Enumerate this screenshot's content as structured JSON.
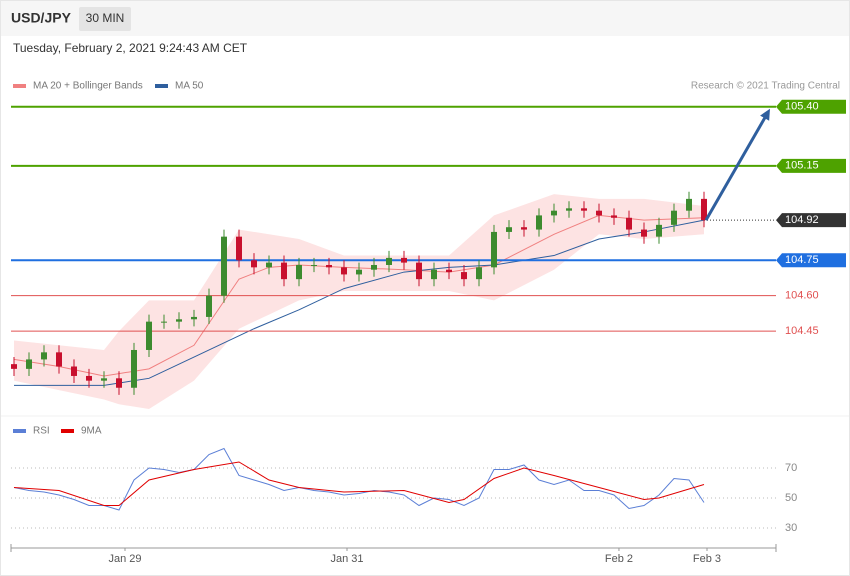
{
  "header": {
    "symbol": "USD/JPY",
    "interval": "30 MIN",
    "timestamp": "Tuesday, February 2, 2021 9:24:43 AM CET"
  },
  "chart_data": [
    {
      "type": "candlestick",
      "credit": "Research © 2021 Trading Central",
      "up_color": "#3d8b2f",
      "down_color": "#c8102e",
      "open": [
        104.31,
        104.29,
        104.33,
        104.36,
        104.3,
        104.26,
        104.24,
        104.25,
        104.21,
        104.37,
        104.49,
        104.49,
        104.5,
        104.51,
        104.6,
        104.85,
        104.75,
        104.72,
        104.74,
        104.67,
        104.73,
        104.73,
        104.72,
        104.69,
        104.71,
        104.73,
        104.76,
        104.74,
        104.67,
        104.71,
        104.7,
        104.67,
        104.72,
        104.87,
        104.89,
        104.88,
        104.94,
        104.96,
        104.97,
        104.96,
        104.94,
        104.93,
        104.88,
        104.85,
        104.9,
        104.96,
        105.01
      ],
      "high": [
        104.34,
        104.36,
        104.39,
        104.39,
        104.33,
        104.29,
        104.28,
        104.28,
        104.4,
        104.52,
        104.52,
        104.53,
        104.54,
        104.63,
        104.88,
        104.88,
        104.78,
        104.77,
        104.77,
        104.76,
        104.76,
        104.76,
        104.75,
        104.74,
        104.76,
        104.79,
        104.79,
        104.77,
        104.74,
        104.74,
        104.73,
        104.75,
        104.9,
        104.92,
        104.92,
        104.97,
        104.99,
        105.0,
        105.0,
        104.99,
        104.97,
        104.96,
        104.91,
        104.93,
        104.99,
        105.04,
        105.04
      ],
      "low": [
        104.26,
        104.26,
        104.3,
        104.27,
        104.23,
        104.21,
        104.21,
        104.18,
        104.18,
        104.34,
        104.46,
        104.46,
        104.47,
        104.48,
        104.57,
        104.72,
        104.69,
        104.69,
        104.64,
        104.64,
        104.7,
        104.69,
        104.66,
        104.66,
        104.68,
        104.7,
        104.71,
        104.64,
        104.64,
        104.67,
        104.64,
        104.64,
        104.69,
        104.84,
        104.85,
        104.85,
        104.91,
        104.93,
        104.93,
        104.91,
        104.9,
        104.85,
        104.82,
        104.82,
        104.87,
        104.93,
        104.89
      ],
      "close": [
        104.29,
        104.33,
        104.36,
        104.3,
        104.26,
        104.24,
        104.25,
        104.21,
        104.37,
        104.49,
        104.49,
        104.5,
        104.51,
        104.6,
        104.85,
        104.75,
        104.72,
        104.74,
        104.67,
        104.73,
        104.73,
        104.72,
        104.69,
        104.71,
        104.73,
        104.76,
        104.74,
        104.67,
        104.71,
        104.7,
        104.67,
        104.72,
        104.87,
        104.89,
        104.88,
        104.94,
        104.96,
        104.97,
        104.96,
        104.94,
        104.93,
        104.88,
        104.85,
        104.9,
        104.96,
        105.01,
        104.92
      ],
      "overlays": [
        {
          "name": "MA 20 + Bollinger Bands",
          "color": "#f08080",
          "band_color": "#fde3e3",
          "x": [
            0,
            3,
            6,
            7,
            9,
            12,
            15,
            17,
            19,
            22,
            26,
            29,
            32,
            36,
            39,
            42,
            46
          ],
          "values": [
            104.33,
            104.3,
            104.26,
            104.27,
            104.29,
            104.39,
            104.67,
            104.72,
            104.73,
            104.72,
            104.71,
            104.7,
            104.73,
            104.86,
            104.94,
            104.92,
            104.93
          ],
          "upper": [
            104.41,
            104.39,
            104.37,
            104.45,
            104.58,
            104.58,
            104.88,
            104.86,
            104.84,
            104.77,
            104.77,
            104.77,
            104.94,
            105.03,
            105.01,
            105.01,
            104.98
          ],
          "lower": [
            104.24,
            104.2,
            104.16,
            104.14,
            104.12,
            104.24,
            104.46,
            104.52,
            104.58,
            104.62,
            104.62,
            104.62,
            104.58,
            104.71,
            104.86,
            104.84,
            104.86
          ]
        },
        {
          "name": "MA 50",
          "color": "#2f5f9e",
          "x": [
            0,
            6,
            9,
            12,
            16,
            19,
            22,
            26,
            29,
            32,
            36,
            39,
            42,
            46
          ],
          "values": [
            104.22,
            104.22,
            104.25,
            104.34,
            104.46,
            104.54,
            104.63,
            104.7,
            104.72,
            104.73,
            104.77,
            104.84,
            104.87,
            104.92
          ]
        }
      ],
      "levels": [
        {
          "value": 105.4,
          "label": "105.40",
          "color": "#4ea200",
          "boxed": true
        },
        {
          "value": 105.15,
          "color": "#4ea200",
          "boxed": true
        },
        {
          "value": 104.92,
          "color": "#333333",
          "boxed": true,
          "style": "dotted"
        },
        {
          "value": 104.75,
          "color": "#1f6fe0",
          "boxed": true
        },
        {
          "value": 104.6,
          "label": "104.60",
          "color": "#e05050",
          "boxed": false
        },
        {
          "value": 104.45,
          "color": "#e05050",
          "boxed": false
        }
      ],
      "ylim": [
        104.12,
        105.45
      ],
      "xlim": [
        -0.2,
        50.8
      ]
    },
    {
      "type": "line",
      "series": [
        {
          "name": "RSI",
          "color": "#5b7fd6",
          "x": [
            0,
            1,
            2,
            3,
            4,
            5,
            6,
            7,
            8,
            9,
            10,
            11,
            12,
            13,
            14,
            15,
            16,
            17,
            18,
            19,
            20,
            21,
            22,
            23,
            24,
            25,
            26,
            27,
            28,
            29,
            30,
            31,
            32,
            33,
            34,
            35,
            36,
            37,
            38,
            39,
            40,
            41,
            42,
            43,
            44,
            45,
            46
          ],
          "values": [
            57,
            55,
            54,
            52,
            49,
            45,
            45,
            42,
            62,
            70,
            69,
            67,
            69,
            79,
            83,
            65,
            62,
            59,
            55,
            57,
            55,
            54,
            52,
            53,
            55,
            54,
            52,
            45,
            50,
            49,
            45,
            50,
            69,
            69,
            72,
            62,
            59,
            62,
            55,
            55,
            52,
            43,
            45,
            52,
            63,
            62,
            47
          ]
        },
        {
          "name": "9MA",
          "color": "#e00000",
          "x": [
            0,
            3,
            6,
            7,
            9,
            12,
            15,
            17,
            19,
            22,
            26,
            29,
            30,
            32,
            34,
            36,
            39,
            42,
            43,
            46
          ],
          "values": [
            57,
            55,
            45,
            45,
            62,
            69,
            74,
            62,
            57,
            54,
            55,
            47,
            49,
            63,
            70,
            65,
            57,
            49,
            50,
            59
          ]
        }
      ],
      "ylim": [
        22,
        85
      ],
      "yticks": [
        30,
        50,
        70
      ],
      "xlim": [
        -0.2,
        50.8
      ],
      "xticks": [
        {
          "value": 7.4,
          "label": "Jan 29"
        },
        {
          "value": 22.2,
          "label": "Jan 31"
        },
        {
          "value": 40.33,
          "label": "Feb 2"
        },
        {
          "value": 46.2,
          "label": "Feb 3"
        }
      ]
    }
  ]
}
